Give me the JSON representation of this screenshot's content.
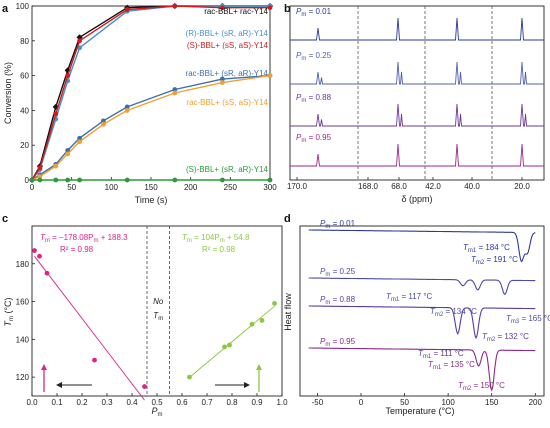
{
  "chart_data": [
    {
      "panel": "a",
      "type": "line",
      "xlabel": "Time (s)",
      "ylabel": "Conversion (%)",
      "xlim": [
        0,
        300
      ],
      "ylim": [
        0,
        100
      ],
      "xticks": [
        0,
        50,
        100,
        150,
        200,
        250,
        300
      ],
      "yticks": [
        0,
        20,
        40,
        60,
        80,
        100
      ],
      "annotations": [
        {
          "text": "rac-BBL+ rac-Y14",
          "color": "#111111"
        },
        {
          "text": "(R)-BBL+ (sR, aR)-Y14",
          "color": "#4a90c8"
        },
        {
          "text": "(S)-BBL+ (sS, aS)-Y14",
          "color": "#d7191c"
        },
        {
          "text": "rac-BBL+ (sR, aR)-Y14",
          "color": "#3b6fb0"
        },
        {
          "text": "rac-BBL+ (sS, aS)-Y14",
          "color": "#f0a030"
        },
        {
          "text": "(S)-BBL+ (sR, aR)-Y14",
          "color": "#2a9a3a"
        }
      ],
      "series": [
        {
          "color": "#111111",
          "x": [
            0,
            10,
            30,
            45,
            60,
            120,
            180,
            240,
            300
          ],
          "y": [
            0,
            8,
            42,
            63,
            82,
            99,
            100,
            100,
            100
          ]
        },
        {
          "color": "#4a90c8",
          "x": [
            0,
            10,
            30,
            45,
            60,
            120,
            180,
            240,
            300
          ],
          "y": [
            0,
            6,
            35,
            57,
            76,
            97,
            100,
            100,
            100
          ]
        },
        {
          "color": "#d7191c",
          "x": [
            0,
            10,
            30,
            45,
            60,
            120,
            180,
            240,
            300
          ],
          "y": [
            0,
            7,
            38,
            60,
            80,
            98,
            100,
            99,
            99
          ]
        },
        {
          "color": "#3b6fb0",
          "x": [
            0,
            10,
            30,
            45,
            60,
            90,
            120,
            180,
            240,
            300
          ],
          "y": [
            0,
            3,
            9,
            17,
            24,
            34,
            42,
            52,
            58,
            60
          ]
        },
        {
          "color": "#f0a030",
          "x": [
            0,
            10,
            30,
            45,
            60,
            90,
            120,
            180,
            240,
            300
          ],
          "y": [
            0,
            2,
            8,
            15,
            22,
            32,
            40,
            50,
            56,
            60
          ]
        },
        {
          "color": "#2a9a3a",
          "x": [
            0,
            10,
            30,
            45,
            60,
            120,
            180,
            240,
            300
          ],
          "y": [
            0,
            0,
            0,
            0,
            0,
            0,
            0,
            0,
            0
          ]
        }
      ]
    },
    {
      "panel": "b",
      "type": "line",
      "xlabel": "δ (ppm)",
      "xlim": [
        170.0,
        17.0
      ],
      "xticks": [
        {
          "pos": 170.0,
          "label": "170.0"
        },
        {
          "pos": 168.0,
          "label": "168.0"
        },
        {
          "pos": 68.0,
          "label": "68.0"
        },
        {
          "pos": 42.0,
          "label": "42.0"
        },
        {
          "pos": 40.0,
          "label": "40.0"
        },
        {
          "pos": 20.0,
          "label": "20.0"
        }
      ],
      "spectra": [
        {
          "label": "P",
          "sub": "m",
          "value": "= 0.01",
          "color": "#2b3a9a"
        },
        {
          "label": "P",
          "sub": "m",
          "value": "= 0.25",
          "color": "#5360b0"
        },
        {
          "label": "P",
          "sub": "m",
          "value": "= 0.88",
          "color": "#6a3a9a"
        },
        {
          "label": "P",
          "sub": "m",
          "value": "= 0.95",
          "color": "#9a2a8a"
        }
      ]
    },
    {
      "panel": "c",
      "type": "scatter",
      "xlabel_main": "P",
      "xlabel_sub": "m",
      "ylabel_main": "T",
      "ylabel_sub": "m",
      "ylabel_unit": " (°C)",
      "xlim": [
        0.0,
        1.0
      ],
      "ylim": [
        110,
        200
      ],
      "xticks": [
        0.0,
        0.1,
        0.2,
        0.3,
        0.4,
        0.5,
        0.6,
        0.7,
        0.8,
        0.9,
        1.0
      ],
      "yticks": [
        120,
        140,
        160,
        180
      ],
      "series": [
        {
          "color": "#e0218a",
          "x": [
            0.01,
            0.03,
            0.06,
            0.25,
            0.45
          ],
          "y": [
            187,
            184,
            175,
            129,
            115
          ],
          "fit": {
            "text": "T",
            "sub": "m",
            "rest": " = −178.08P",
            "sub2": "m",
            "rest2": " + 188.3",
            "r2": "R² = 0.98"
          }
        },
        {
          "color": "#8dc63f",
          "x": [
            0.63,
            0.77,
            0.79,
            0.88,
            0.92,
            0.97
          ],
          "y": [
            120,
            136,
            137,
            148,
            150,
            159
          ],
          "fit": {
            "text": "T",
            "sub": "m",
            "rest": " = 104P",
            "sub2": "m",
            "rest2": " + 54.8",
            "r2": "R² = 0.98"
          }
        }
      ],
      "region_label": {
        "line1": "No",
        "line2_main": "T",
        "line2_sub": "m"
      }
    },
    {
      "panel": "d",
      "type": "line",
      "xlabel": "Temperature (°C)",
      "ylabel": "Heat flow",
      "xlim": [
        -70,
        210
      ],
      "xticks": [
        -50,
        0,
        50,
        100,
        150,
        200
      ],
      "traces": [
        {
          "label": "P",
          "sub": "m",
          "value": "= 0.01",
          "color": "#2b3a9a",
          "peaks": [
            {
              "T": "T",
              "sub": "m1",
              "val": " = 184 °C"
            },
            {
              "T": "T",
              "sub": "m2",
              "val": " = 191 °C"
            }
          ]
        },
        {
          "label": "P",
          "sub": "m",
          "value": "= 0.25",
          "color": "#4b4aa8",
          "peaks": [
            {
              "T": "T",
              "sub": "m1",
              "val": " = 117 °C"
            },
            {
              "T": "T",
              "sub": "m2",
              "val": " = 134 °C"
            },
            {
              "T": "T",
              "sub": "m3",
              "val": " = 165 °C"
            }
          ]
        },
        {
          "label": "P",
          "sub": "m",
          "value": "= 0.88",
          "color": "#5a3aa0",
          "peaks": [
            {
              "T": "T",
              "sub": "m1",
              "val": " = 111 °C"
            },
            {
              "T": "T",
              "sub": "m2",
              "val": " = 132 °C"
            }
          ]
        },
        {
          "label": "P",
          "sub": "m",
          "value": "= 0.95",
          "color": "#8a2a8a",
          "peaks": [
            {
              "T": "T",
              "sub": "m1",
              "val": " = 135 °C"
            },
            {
              "T": "T",
              "sub": "m2",
              "val": " = 150 °C"
            }
          ]
        }
      ]
    }
  ]
}
